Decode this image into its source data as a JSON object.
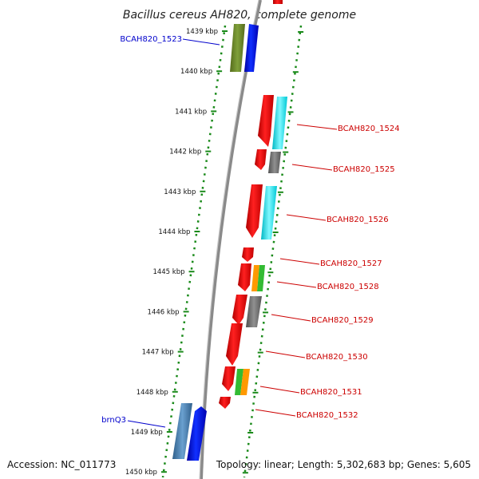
{
  "title": "Bacillus cereus AH820, complete genome",
  "footer": {
    "accession": "Accession: NC_011773",
    "summary": "Topology: linear; Length: 5,302,683 bp; Genes: 5,605"
  },
  "ticks": [
    "1439 kbp",
    "1440 kbp",
    "1441 kbp",
    "1442 kbp",
    "1443 kbp",
    "1444 kbp",
    "1445 kbp",
    "1446 kbp",
    "1447 kbp",
    "1448 kbp",
    "1449 kbp",
    "1450 kbp"
  ],
  "genes_left": [
    {
      "name": "BCAH820_1523",
      "color": "#0000cc"
    },
    {
      "name": "brnQ3",
      "color": "#0000cc"
    }
  ],
  "genes_right": [
    {
      "name": "BCAH820_1524",
      "color": "#cc0000"
    },
    {
      "name": "BCAH820_1525",
      "color": "#cc0000"
    },
    {
      "name": "BCAH820_1526",
      "color": "#cc0000"
    },
    {
      "name": "BCAH820_1527",
      "color": "#cc0000"
    },
    {
      "name": "BCAH820_1528",
      "color": "#cc0000"
    },
    {
      "name": "BCAH820_1529",
      "color": "#cc0000"
    },
    {
      "name": "BCAH820_1530",
      "color": "#cc0000"
    },
    {
      "name": "BCAH820_1531",
      "color": "#cc0000"
    },
    {
      "name": "BCAH820_1532",
      "color": "#cc0000"
    }
  ],
  "colors": {
    "backbone": "#8a8a8a",
    "tick_dots": "#1a8a1a",
    "gene_red": "#ee1111",
    "gene_blue": "#0011ee",
    "cog_olive": "#6b8e23",
    "cog_cyan": "#00e5ee",
    "cog_gray": "#707070",
    "cog_orange": "#ff9900",
    "cog_green": "#33bb33",
    "cog_steel": "#4682b4"
  }
}
